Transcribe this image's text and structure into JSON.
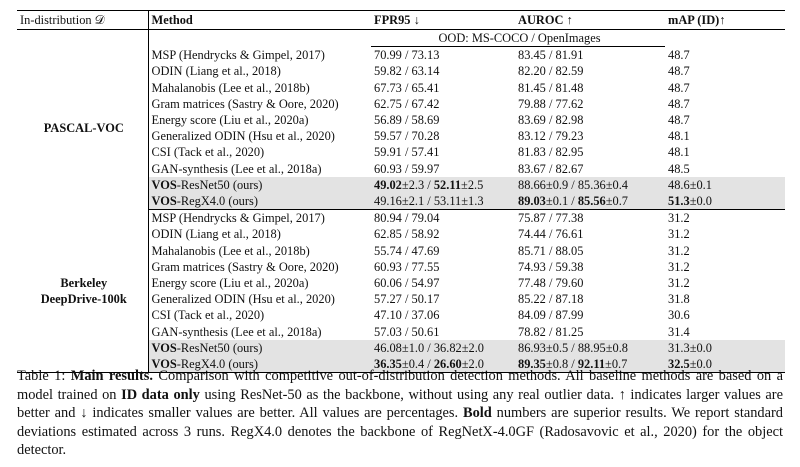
{
  "table": {
    "headers": {
      "in_dist": "In-distribution 𝒟",
      "method": "Method",
      "fpr": "FPR95 ↓",
      "auroc": "AUROC ↑",
      "map": "mAP (ID)↑"
    },
    "ood_label": "OOD: MS-COCO / OpenImages",
    "groups": [
      {
        "name": "PASCAL-VOC",
        "rows": [
          {
            "method": "MSP (Hendrycks & Gimpel, 2017)",
            "fpr": "70.99 / 73.13",
            "auroc": "83.45 / 81.91",
            "map": "48.7"
          },
          {
            "method": "ODIN (Liang et al., 2018)",
            "fpr": "59.82 / 63.14",
            "auroc": "82.20 / 82.59",
            "map": "48.7"
          },
          {
            "method": "Mahalanobis (Lee et al., 2018b)",
            "fpr": "67.73 / 65.41",
            "auroc": "81.45 / 81.48",
            "map": "48.7"
          },
          {
            "method": "Gram matrices (Sastry & Oore, 2020)",
            "fpr": "62.75 / 67.42",
            "auroc": "79.88 / 77.62",
            "map": "48.7"
          },
          {
            "method": "Energy score (Liu et al., 2020a)",
            "fpr": "56.89 / 58.69",
            "auroc": "83.69 / 82.98",
            "map": "48.7"
          },
          {
            "method": "Generalized ODIN (Hsu et al., 2020)",
            "fpr": "59.57 / 70.28",
            "auroc": "83.12 / 79.23",
            "map": "48.1"
          },
          {
            "method": "CSI (Tack et al., 2020)",
            "fpr": "59.91 / 57.41",
            "auroc": "81.83 / 82.95",
            "map": "48.1"
          },
          {
            "method": "GAN-synthesis (Lee et al., 2018a)",
            "fpr": "60.93 / 59.97",
            "auroc": "83.67 / 82.67",
            "map": "48.5"
          }
        ],
        "ours": [
          {
            "m1": "VOS",
            "m2": "-ResNet50 (ours)",
            "f1": "49.02",
            "f2": "±2.3 / ",
            "f3": "52.11",
            "f4": "±2.5",
            "a1": "88.66",
            "a2": "±0.9 / ",
            "a3": "85.36",
            "a4": "±0.4",
            "p1": "48.6",
            "p2": "±0.1"
          },
          {
            "m1": "VOS",
            "m2": "-RegX4.0 (ours)",
            "f1": "49.16",
            "f2": "±2.1 / ",
            "f3": "53.11",
            "f4": "±1.3",
            "a1": "89.03",
            "a2": "±0.1 / ",
            "a3": "85.56",
            "a4": "±0.7",
            "p1": "51.3",
            "p2": "±0.0"
          }
        ]
      },
      {
        "name_line1": "Berkeley",
        "name_line2": "DeepDrive-100k",
        "rows": [
          {
            "method": "MSP (Hendrycks & Gimpel, 2017)",
            "fpr": "80.94 / 79.04",
            "auroc": "75.87 / 77.38",
            "map": "31.2"
          },
          {
            "method": "ODIN (Liang et al., 2018)",
            "fpr": "62.85 / 58.92",
            "auroc": "74.44 / 76.61",
            "map": "31.2"
          },
          {
            "method": "Mahalanobis (Lee et al., 2018b)",
            "fpr": "55.74 / 47.69",
            "auroc": "85.71 / 88.05",
            "map": "31.2"
          },
          {
            "method": "Gram matrices (Sastry & Oore, 2020)",
            "fpr": "60.93 / 77.55",
            "auroc": "74.93 / 59.38",
            "map": "31.2"
          },
          {
            "method": "Energy score (Liu et al., 2020a)",
            "fpr": "60.06 / 54.97",
            "auroc": "77.48 / 79.60",
            "map": "31.2"
          },
          {
            "method": "Generalized ODIN (Hsu et al., 2020)",
            "fpr": "57.27 / 50.17",
            "auroc": "85.22 / 87.18",
            "map": "31.8"
          },
          {
            "method": "CSI (Tack et al., 2020)",
            "fpr": "47.10 / 37.06",
            "auroc": "84.09 / 87.99",
            "map": "30.6"
          },
          {
            "method": "GAN-synthesis (Lee et al., 2018a)",
            "fpr": "57.03 / 50.61",
            "auroc": "78.82 / 81.25",
            "map": "31.4"
          }
        ],
        "ours": [
          {
            "m1": "VOS",
            "m2": "-ResNet50 (ours)",
            "f1": "46.08",
            "f2": "±1.0 / ",
            "f3": "36.82",
            "f4": "±2.0",
            "a1": "86.93",
            "a2": "±0.5 / ",
            "a3": "88.95",
            "a4": "±0.8",
            "p1": "31.3",
            "p2": "±0.0"
          },
          {
            "m1": "VOS",
            "m2": "-RegX4.0 (ours)",
            "f1": "36.35",
            "f2": "±0.4 / ",
            "f3": "26.60",
            "f4": "±2.0",
            "a1": "89.35",
            "a2": "±0.8 / ",
            "a3": "92.11",
            "a4": "±0.7",
            "p1": "32.5",
            "p2": "±0.0"
          }
        ]
      }
    ]
  },
  "caption": {
    "label": "Table 1:",
    "title": "Main results.",
    "t1": " Comparison with competitive out-of-distribution detection methods. All baseline methods are based on a model trained on ",
    "b1": "ID data only",
    "t2": " using ResNet-50 as the backbone, without using any real outlier data. ↑ indicates larger values are better and ↓ indicates smaller values are better. All values are percentages. ",
    "b2": "Bold",
    "t3": " numbers are superior results. We report standard deviations estimated across 3 runs. RegX4.0 denotes the backbone of RegNetX-4.0GF (Radosavovic et al., 2020) for the object detector."
  }
}
